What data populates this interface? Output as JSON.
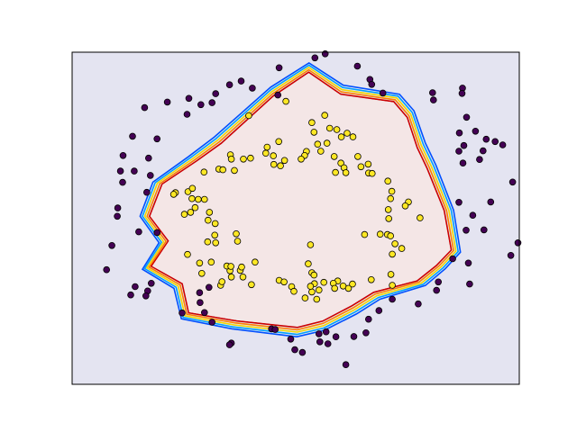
{
  "chart_data": {
    "type": "scatter",
    "title": "",
    "xlabel": "",
    "ylabel": "",
    "xlim": [
      0,
      100
    ],
    "ylim": [
      0,
      100
    ],
    "ticks": false,
    "grid": false,
    "legend": "none",
    "colors": {
      "outer_region": "#e4e4f1",
      "inner_region": "#f4e6e6",
      "outer_point": "#440154",
      "inner_point": "#fde725",
      "point_edge": "#000000",
      "contours": [
        "#0050ff",
        "#00a0ff",
        "#f2d700",
        "#ff7f00",
        "#cc0000"
      ]
    },
    "boundary": [
      [
        52.9,
        93.7
      ],
      [
        60,
        87.1
      ],
      [
        71.8,
        84.9
      ],
      [
        74.8,
        80.2
      ],
      [
        77,
        71.1
      ],
      [
        79.2,
        64.9
      ],
      [
        83,
        52.3
      ],
      [
        84.6,
        40.5
      ],
      [
        81.3,
        35.9
      ],
      [
        77,
        31.3
      ],
      [
        67.3,
        27.9
      ],
      [
        62.5,
        23.9
      ],
      [
        56,
        19.3
      ],
      [
        50.4,
        17.4
      ],
      [
        36.9,
        19.3
      ],
      [
        26.2,
        21.7
      ],
      [
        24.8,
        30.4
      ],
      [
        17.9,
        35.6
      ],
      [
        21.7,
        43.2
      ],
      [
        17.5,
        50.6
      ],
      [
        20.3,
        60.2
      ],
      [
        28,
        67.1
      ],
      [
        33.5,
        72.4
      ],
      [
        45,
        86.5
      ]
    ],
    "series": [
      {
        "name": "",
        "class": 0,
        "points": [
          [
            54.3,
            98.3
          ],
          [
            56.6,
            99.5
          ],
          [
            46.3,
            95.3
          ],
          [
            63.8,
            95.8
          ],
          [
            66.6,
            91.8
          ],
          [
            37.8,
            91.3
          ],
          [
            35.2,
            90.2
          ],
          [
            40.3,
            89.2
          ],
          [
            32.1,
            87.5
          ],
          [
            31.3,
            84.8
          ],
          [
            26.1,
            86.1
          ],
          [
            28.8,
            84.2
          ],
          [
            21.3,
            85
          ],
          [
            16.2,
            83.3
          ],
          [
            25.7,
            81.3
          ],
          [
            46,
            87.1
          ],
          [
            67,
            90.3
          ],
          [
            69.5,
            87.7
          ],
          [
            80.6,
            87.8
          ],
          [
            80.8,
            85.6
          ],
          [
            87.3,
            89.2
          ],
          [
            87.2,
            87.6
          ],
          [
            88.2,
            80.4
          ],
          [
            86.6,
            75.7
          ],
          [
            87.6,
            71.9
          ],
          [
            90.2,
            76.2
          ],
          [
            86.5,
            70.2
          ],
          [
            92.6,
            73.8
          ],
          [
            94.6,
            73.1
          ],
          [
            96.3,
            72.1
          ],
          [
            87.4,
            66.6
          ],
          [
            91.1,
            67.7
          ],
          [
            91.9,
            70.3
          ],
          [
            98.5,
            60.9
          ],
          [
            86.5,
            54.8
          ],
          [
            93.6,
            54.9
          ],
          [
            89.6,
            50.9
          ],
          [
            88.1,
            46.4
          ],
          [
            92.1,
            46.5
          ],
          [
            99.7,
            42.6
          ],
          [
            98.1,
            38.8
          ],
          [
            85.1,
            37.8
          ],
          [
            88.6,
            36.5
          ],
          [
            81.9,
            30.8
          ],
          [
            88.9,
            30.2
          ],
          [
            81.5,
            28.3
          ],
          [
            77.4,
            24.2
          ],
          [
            71.6,
            25.6
          ],
          [
            68.6,
            22.2
          ],
          [
            66.3,
            19.6
          ],
          [
            65.7,
            15.5
          ],
          [
            63,
            14.4
          ],
          [
            59,
            14.3
          ],
          [
            56.8,
            15.8
          ],
          [
            55.4,
            12.8
          ],
          [
            57.2,
            12.2
          ],
          [
            48.9,
            13.6
          ],
          [
            49.8,
            10.4
          ],
          [
            51.5,
            9.6
          ],
          [
            61.2,
            5.9
          ],
          [
            55.2,
            15.2
          ],
          [
            35.6,
            12.4
          ],
          [
            35.2,
            11.9
          ],
          [
            44.6,
            16.7
          ],
          [
            45.4,
            16.5
          ],
          [
            31.3,
            18.7
          ],
          [
            29.6,
            21.6
          ],
          [
            28.6,
            24.6
          ],
          [
            28.5,
            27.6
          ],
          [
            30.6,
            29.2
          ],
          [
            24.6,
            21.5
          ],
          [
            16.9,
            28.1
          ],
          [
            16.5,
            26.6
          ],
          [
            13.1,
            26.9
          ],
          [
            14.1,
            29.4
          ],
          [
            17.7,
            30.4
          ],
          [
            7.7,
            34.5
          ],
          [
            8.9,
            41.8
          ],
          [
            14.9,
            45.9
          ],
          [
            19,
            45.7
          ],
          [
            10.1,
            50.6
          ],
          [
            10.2,
            53.1
          ],
          [
            16.7,
            57.8
          ],
          [
            11.3,
            60.8
          ],
          [
            10.8,
            64.2
          ],
          [
            17.5,
            62.9
          ],
          [
            17.1,
            68.1
          ],
          [
            13.5,
            74.7
          ],
          [
            11.4,
            68.9
          ],
          [
            19,
            73.9
          ],
          [
            13.9,
            64.2
          ]
        ]
      },
      {
        "name": "",
        "class": 1,
        "points": [
          [
            39.5,
            80.9
          ],
          [
            47.8,
            85.2
          ],
          [
            53.6,
            78.8
          ],
          [
            56.5,
            81
          ],
          [
            54.1,
            75.9
          ],
          [
            59.2,
            76.7
          ],
          [
            60.2,
            74.5
          ],
          [
            61.5,
            75.6
          ],
          [
            62.8,
            74.5
          ],
          [
            57.6,
            77.1
          ],
          [
            54.9,
            72.3
          ],
          [
            57,
            72.6
          ],
          [
            55.6,
            70.2
          ],
          [
            46.2,
            73.1
          ],
          [
            43.6,
            71.4
          ],
          [
            45,
            68.8
          ],
          [
            43.3,
            69.6
          ],
          [
            52.4,
            70.1
          ],
          [
            52,
            68.9
          ],
          [
            51.2,
            67.8
          ],
          [
            58.6,
            68.6
          ],
          [
            60.1,
            66.6
          ],
          [
            60.8,
            65.2
          ],
          [
            63.9,
            68.6
          ],
          [
            66.2,
            66.3
          ],
          [
            64.6,
            65.5
          ],
          [
            66.3,
            63.6
          ],
          [
            67.1,
            63.5
          ],
          [
            61.2,
            63.7
          ],
          [
            58.9,
            63.8
          ],
          [
            70.6,
            61.2
          ],
          [
            71.5,
            58.1
          ],
          [
            71.2,
            55.9
          ],
          [
            75.2,
            54.9
          ],
          [
            74.5,
            53.7
          ],
          [
            70.7,
            52.6
          ],
          [
            70.8,
            49.9
          ],
          [
            77.8,
            50.1
          ],
          [
            68.9,
            45.2
          ],
          [
            70.5,
            45.1
          ],
          [
            71.2,
            44.7
          ],
          [
            72.2,
            42.3
          ],
          [
            73.7,
            40.9
          ],
          [
            71.6,
            39.2
          ],
          [
            65.4,
            45.1
          ],
          [
            53.3,
            42
          ],
          [
            71.3,
            33.1
          ],
          [
            71.6,
            29.8
          ],
          [
            59.4,
            31.1
          ],
          [
            58.4,
            30.4
          ],
          [
            58.7,
            28.9
          ],
          [
            56.3,
            30.7
          ],
          [
            55.2,
            28.4
          ],
          [
            54.2,
            30.3
          ],
          [
            53.6,
            27.8
          ],
          [
            52.1,
            26
          ],
          [
            54.7,
            25.6
          ],
          [
            53.6,
            33.6
          ],
          [
            54.1,
            32.9
          ],
          [
            53.3,
            29.5
          ],
          [
            60.6,
            29.6
          ],
          [
            61.8,
            28.9
          ],
          [
            62.7,
            30.2
          ],
          [
            66.9,
            31.5
          ],
          [
            52.8,
            36.3
          ],
          [
            46.3,
            31.3
          ],
          [
            47.4,
            30.8
          ],
          [
            49.1,
            29.4
          ],
          [
            49.6,
            28
          ],
          [
            40.1,
            30
          ],
          [
            38.2,
            32.3
          ],
          [
            37.6,
            34.3
          ],
          [
            35.6,
            32.3
          ],
          [
            33.2,
            29.8
          ],
          [
            33.5,
            30.9
          ],
          [
            37.9,
            35.3
          ],
          [
            40.9,
            36.8
          ],
          [
            35.3,
            34.2
          ],
          [
            34.6,
            35.6
          ],
          [
            35.5,
            35.5
          ],
          [
            31.1,
            36.8
          ],
          [
            29,
            33.4
          ],
          [
            28.5,
            36.5
          ],
          [
            25.8,
            39.1
          ],
          [
            30.3,
            42.9
          ],
          [
            37,
            43.1
          ],
          [
            36.7,
            45.3
          ],
          [
            32.1,
            42.6
          ],
          [
            31.9,
            44.9
          ],
          [
            32,
            48.4
          ],
          [
            30.4,
            49.4
          ],
          [
            30.7,
            51.8
          ],
          [
            29.6,
            55.7
          ],
          [
            27.5,
            53.2
          ],
          [
            26.5,
            51.8
          ],
          [
            25.1,
            51.2
          ],
          [
            28.2,
            55.7
          ],
          [
            26.8,
            55.9
          ],
          [
            25.9,
            58
          ],
          [
            26.9,
            59
          ],
          [
            29.5,
            63.9
          ],
          [
            32.8,
            64.8
          ],
          [
            33.7,
            64.6
          ],
          [
            36.3,
            64.4
          ],
          [
            38.3,
            67.8
          ],
          [
            35.4,
            69.1
          ],
          [
            35.6,
            67.8
          ],
          [
            39.9,
            68.1
          ],
          [
            45.1,
            66.2
          ],
          [
            46.6,
            65.8
          ],
          [
            47.5,
            67.4
          ],
          [
            23.1,
            57.7
          ],
          [
            22.7,
            57.2
          ]
        ]
      }
    ]
  }
}
